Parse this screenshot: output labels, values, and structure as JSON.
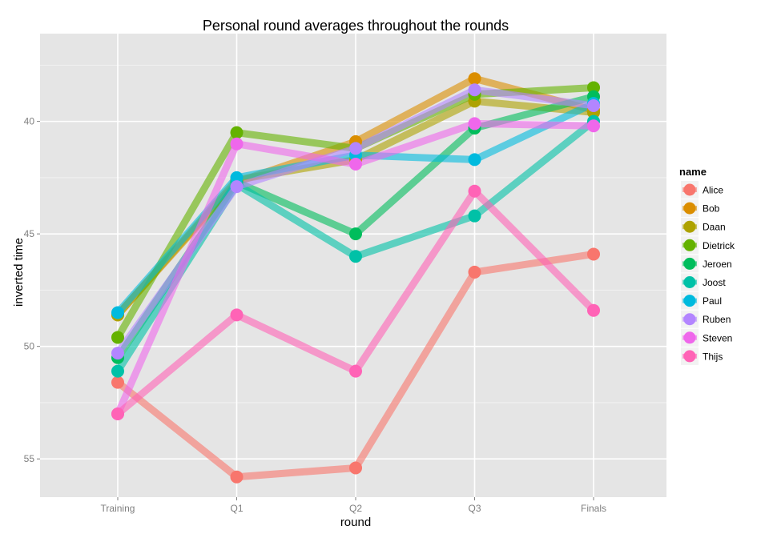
{
  "chart_data": {
    "type": "line",
    "title": "Personal round averages throughout the rounds",
    "xlabel": "round",
    "ylabel": "inverted time",
    "categories": [
      "Training",
      "Q1",
      "Q2",
      "Q3",
      "Finals"
    ],
    "y_axis": {
      "reversed": true,
      "ylim": [
        56.7,
        36.1
      ],
      "ticks": [
        40,
        45,
        50,
        55
      ]
    },
    "grid": true,
    "legend": {
      "title": "name",
      "position": "right"
    },
    "series": [
      {
        "name": "Alice",
        "color": "#F8766D",
        "values": [
          51.6,
          55.8,
          55.4,
          46.7,
          45.9
        ]
      },
      {
        "name": "Bob",
        "color": "#DB8E00",
        "values": [
          48.6,
          42.7,
          40.9,
          38.1,
          39.5
        ]
      },
      {
        "name": "Daan",
        "color": "#AEA200",
        "values": [
          48.6,
          42.6,
          41.7,
          39.1,
          39.6
        ]
      },
      {
        "name": "Dietrick",
        "color": "#64B200",
        "values": [
          49.6,
          40.5,
          41.2,
          38.8,
          38.5
        ]
      },
      {
        "name": "Jeroen",
        "color": "#00BD5C",
        "values": [
          50.5,
          42.7,
          45.0,
          40.3,
          38.9
        ]
      },
      {
        "name": "Joost",
        "color": "#00C1A7",
        "values": [
          51.1,
          42.8,
          46.0,
          44.2,
          40.0
        ]
      },
      {
        "name": "Paul",
        "color": "#00BADE",
        "values": [
          48.5,
          42.5,
          41.5,
          41.7,
          39.2
        ]
      },
      {
        "name": "Ruben",
        "color": "#B385FF",
        "values": [
          50.3,
          42.9,
          41.2,
          38.6,
          39.3
        ]
      },
      {
        "name": "Steven",
        "color": "#EF67EB",
        "values": [
          53.0,
          41.0,
          41.9,
          40.1,
          40.2
        ]
      },
      {
        "name": "Thijs",
        "color": "#FF63B6",
        "values": [
          53.0,
          48.6,
          51.1,
          43.1,
          48.4
        ]
      }
    ]
  }
}
